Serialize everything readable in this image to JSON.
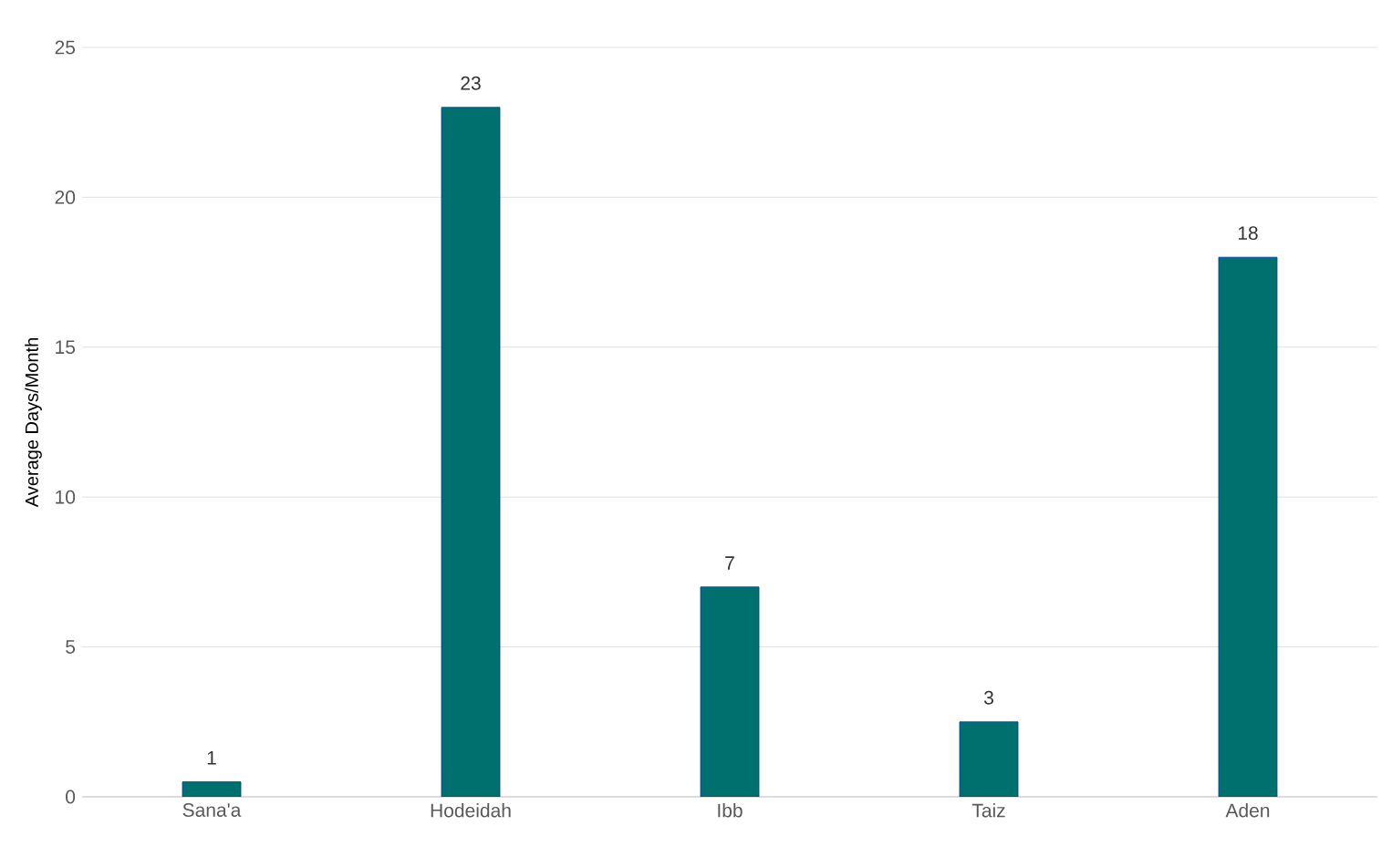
{
  "chart_data": {
    "type": "bar",
    "ylabel": "Average Days/Month",
    "categories": [
      "Sana'a",
      "Hodeidah",
      "Ibb",
      "Taiz",
      "Aden"
    ],
    "values": [
      0.5,
      23,
      7,
      2.5,
      18
    ],
    "value_labels": [
      "1",
      "23",
      "7",
      "3",
      "18"
    ],
    "color": "#00706f",
    "ylim": [
      0,
      25
    ],
    "yticks": [
      0,
      5,
      10,
      15,
      20,
      25
    ],
    "grid": "y"
  }
}
